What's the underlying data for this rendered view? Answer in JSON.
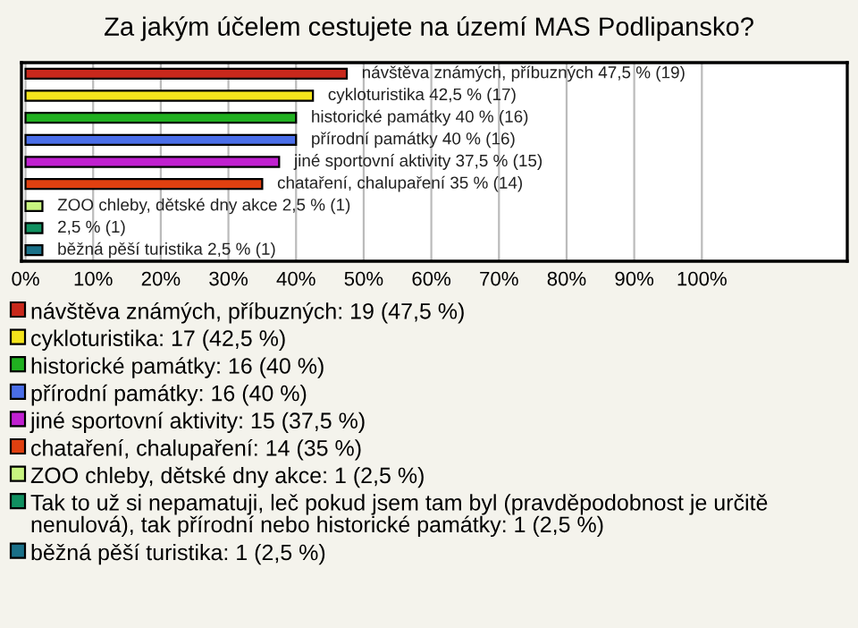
{
  "chart_data": {
    "type": "bar",
    "orientation": "horizontal",
    "title": "Za jakým účelem cestujete na území MAS Podlipansko?",
    "categories": [
      null,
      null,
      null,
      null,
      null,
      null,
      null,
      null,
      null
    ],
    "series": [
      {
        "name": "návštěva známých, příbuzných: 19 (47,5 %)",
        "color": "#c8281c",
        "values": [
          47.5,
          null,
          null,
          null,
          null,
          null,
          null,
          null,
          null
        ],
        "value_labels": [
          "návštěva známých, příbuzných 47,5 % (19)",
          null,
          null,
          null,
          null,
          null,
          null,
          null,
          null
        ]
      },
      {
        "name": "cykloturistika: 17 (42,5 %)",
        "color": "#f4e41c",
        "values": [
          null,
          42.5,
          null,
          null,
          null,
          null,
          null,
          null,
          null
        ],
        "value_labels": [
          null,
          "cykloturistika 42,5 % (17)",
          null,
          null,
          null,
          null,
          null,
          null,
          null
        ]
      },
      {
        "name": "historické památky: 16 (40 %)",
        "color": "#20b020",
        "values": [
          null,
          null,
          40,
          null,
          null,
          null,
          null,
          null,
          null
        ],
        "value_labels": [
          null,
          null,
          "historické památky 40 % (16)",
          null,
          null,
          null,
          null,
          null,
          null
        ]
      },
      {
        "name": "přírodní památky: 16 (40 %)",
        "color": "#4a6ee8",
        "values": [
          null,
          null,
          null,
          40,
          null,
          null,
          null,
          null,
          null
        ],
        "value_labels": [
          null,
          null,
          null,
          "přírodní památky 40 % (16)",
          null,
          null,
          null,
          null,
          null
        ]
      },
      {
        "name": "jiné sportovní aktivity: 15 (37,5 %)",
        "color": "#c020d0",
        "values": [
          null,
          null,
          null,
          null,
          37.5,
          null,
          null,
          null,
          null
        ],
        "value_labels": [
          null,
          null,
          null,
          null,
          "jiné sportovní aktivity 37,5 % (15)",
          null,
          null,
          null,
          null
        ]
      },
      {
        "name": "chataření, chalupaření: 14 (35 %)",
        "color": "#e04010",
        "values": [
          null,
          null,
          null,
          null,
          null,
          35,
          null,
          null,
          null
        ],
        "value_labels": [
          null,
          null,
          null,
          null,
          null,
          "chataření, chalupaření 35 % (14)",
          null,
          null,
          null
        ]
      },
      {
        "name": "ZOO chleby, dětské dny akce: 1 (2,5 %)",
        "color": "#c8f480",
        "values": [
          null,
          null,
          null,
          null,
          null,
          null,
          2.5,
          null,
          null
        ],
        "value_labels": [
          null,
          null,
          null,
          null,
          null,
          null,
          "ZOO chleby, dětské dny akce 2,5 % (1)",
          null,
          null
        ]
      },
      {
        "name": "Tak to už si nepamatuji, leč pokud jsem tam byl (pravděpodobnost je určitě nenulová), tak přírodní nebo historické památky: 1 (2,5 %)",
        "color": "#109060",
        "values": [
          null,
          null,
          null,
          null,
          null,
          null,
          null,
          2.5,
          null
        ],
        "value_labels": [
          null,
          null,
          null,
          null,
          null,
          null,
          null,
          "2,5 % (1)",
          null
        ]
      },
      {
        "name": "běžná pěší turistika: 1 (2,5 %)",
        "color": "#1a7088",
        "values": [
          null,
          null,
          null,
          null,
          null,
          null,
          null,
          null,
          2.5
        ],
        "value_labels": [
          null,
          null,
          null,
          null,
          null,
          null,
          null,
          null,
          "běžná pěší turistika 2,5 % (1)"
        ]
      }
    ],
    "xlim": [
      -0.6,
      121.5
    ],
    "xticks": [
      {
        "value": 0,
        "label": "0%"
      },
      {
        "value": 10,
        "label": "10%"
      },
      {
        "value": 20,
        "label": "20%"
      },
      {
        "value": 30,
        "label": "30%"
      },
      {
        "value": 40,
        "label": "40%"
      },
      {
        "value": 50,
        "label": "50%"
      },
      {
        "value": 60,
        "label": "60%"
      },
      {
        "value": 70,
        "label": "70%"
      },
      {
        "value": 80,
        "label": "80%"
      },
      {
        "value": 90,
        "label": "90%"
      },
      {
        "value": 100,
        "label": "100%"
      }
    ],
    "grid": "x",
    "legend": "bottom"
  }
}
